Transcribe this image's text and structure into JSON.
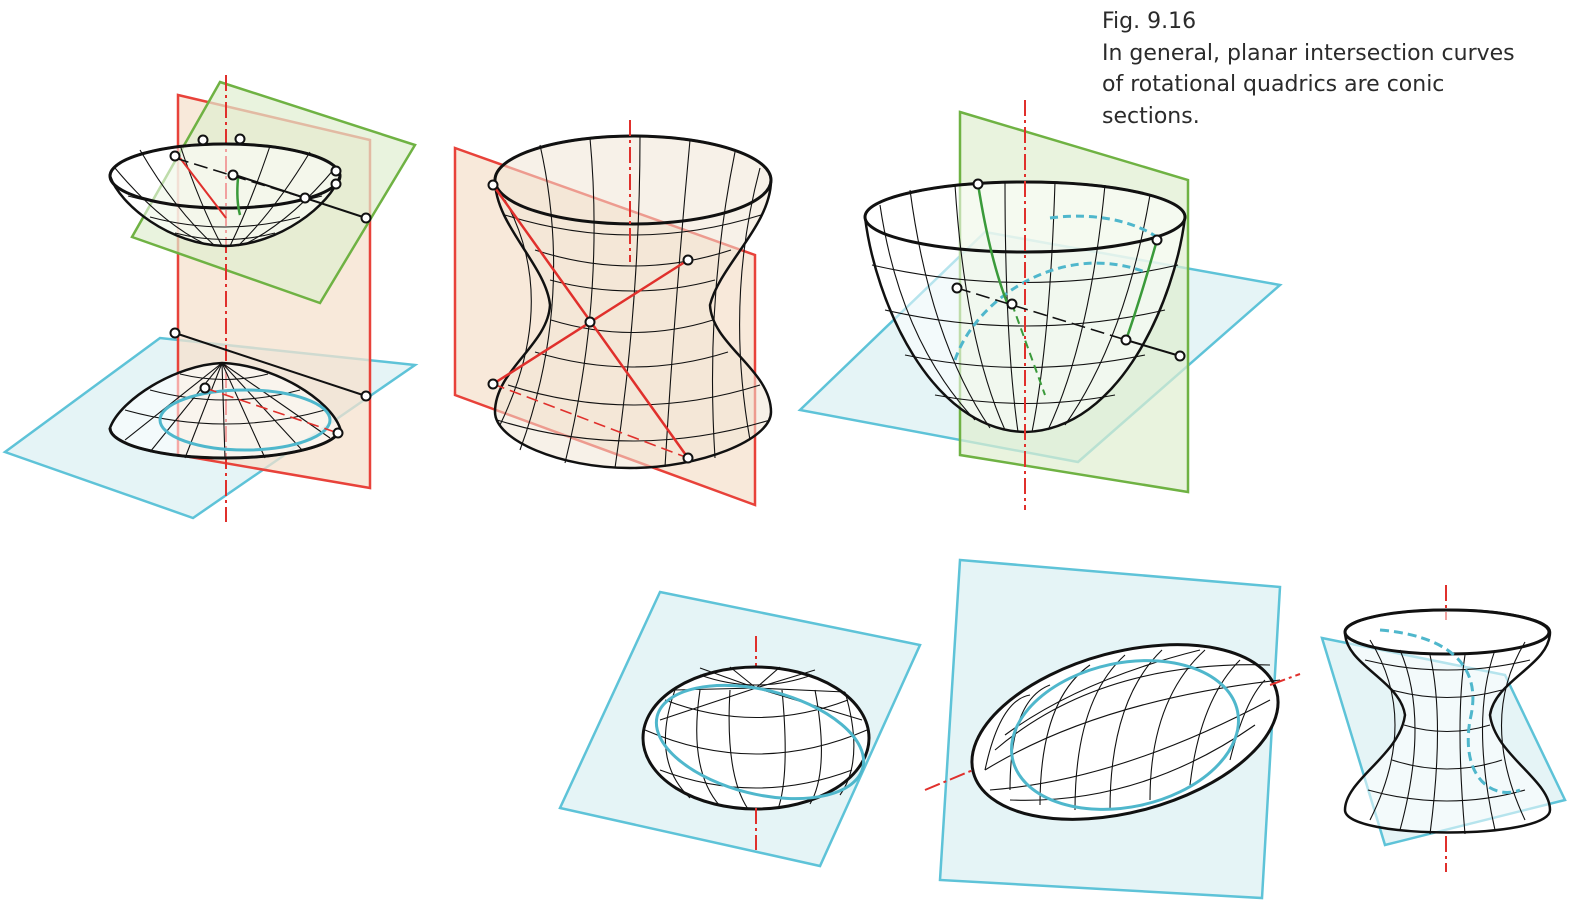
{
  "caption": {
    "fig_label": "Fig. 9.16",
    "lines": [
      "In general, planar intersection curves",
      "of rotational quadrics are conic",
      "sections."
    ]
  },
  "colors": {
    "axis_red": "#e0302c",
    "red_plane_stroke": "#e8423a",
    "red_plane_fill": "#f6e2cd",
    "green_plane_stroke": "#6fb243",
    "green_plane_fill": "#dfeed0",
    "blue_plane_stroke": "#5ec3d8",
    "blue_plane_fill": "#e1f2f5",
    "surface_fill": "#ffffff",
    "surface_tint": "#f1e6d6",
    "mesh": "#111111",
    "section_blue": "#4fb7cc",
    "section_green": "#3a9a3a",
    "point_marker_fill": "#ffffff"
  },
  "figures": [
    {
      "id": "two-sheet-hyperboloid",
      "planes": [
        "red",
        "green",
        "blue"
      ]
    },
    {
      "id": "one-sheet-hyperboloid",
      "planes": [
        "red"
      ]
    },
    {
      "id": "paraboloid",
      "planes": [
        "green",
        "blue"
      ]
    },
    {
      "id": "oblate-ellipsoid",
      "planes": [
        "blue"
      ]
    },
    {
      "id": "prolate-ellipsoid",
      "planes": [
        "blue"
      ]
    },
    {
      "id": "small-hyperboloid",
      "planes": [
        "blue"
      ]
    }
  ]
}
